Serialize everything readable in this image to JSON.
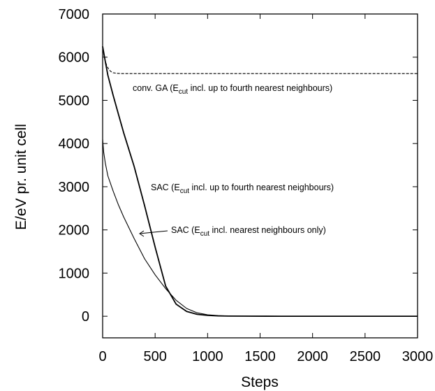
{
  "chart_data": {
    "type": "line",
    "title": "",
    "xlabel": "Steps",
    "ylabel": "E/eV pr. unit cell",
    "xlim": [
      0,
      3000
    ],
    "ylim": [
      -500,
      7000
    ],
    "xticks": [
      "0",
      "500",
      "1000",
      "1500",
      "2000",
      "2500",
      "3000"
    ],
    "yticks": [
      "0",
      "1000",
      "2000",
      "3000",
      "4000",
      "5000",
      "6000",
      "7000"
    ],
    "grid": false,
    "series": [
      {
        "style": "dashed",
        "x": [
          0,
          20,
          40,
          60,
          80,
          100,
          130,
          160,
          200,
          300,
          500,
          1000,
          2000,
          3000
        ],
        "y": [
          6250,
          5950,
          5800,
          5710,
          5665,
          5640,
          5628,
          5622,
          5620,
          5620,
          5620,
          5620,
          5620,
          5620
        ]
      },
      {
        "style": "solid",
        "x": [
          0,
          25,
          50,
          100,
          150,
          200,
          300,
          400,
          500,
          600,
          700,
          800,
          900,
          1000,
          1100,
          1200,
          1400,
          1700,
          2000,
          3000
        ],
        "y": [
          6250,
          5900,
          5580,
          5120,
          4680,
          4250,
          3470,
          2560,
          1600,
          700,
          280,
          110,
          45,
          20,
          8,
          4,
          2,
          0,
          0,
          0
        ]
      },
      {
        "style": "solid",
        "x": [
          0,
          10,
          25,
          50,
          100,
          150,
          200,
          300,
          400,
          500,
          600,
          700,
          800,
          900,
          1000,
          1100,
          1200,
          1500,
          2000,
          3000
        ],
        "y": [
          4100,
          3800,
          3550,
          3250,
          2900,
          2580,
          2300,
          1800,
          1330,
          960,
          640,
          370,
          180,
          80,
          35,
          15,
          6,
          0,
          0,
          0
        ]
      }
    ],
    "annotations": [
      {
        "text_main": "conv. GA (E",
        "text_sub": "cut",
        "text_rest": " incl. up to fourth nearest neighbours)"
      },
      {
        "text_main": "SAC (E",
        "text_sub": "cut",
        "text_rest": " incl. up to fourth nearest neighbours)"
      },
      {
        "text_main": "SAC (E",
        "text_sub": "cut",
        "text_rest": " incl. nearest neighbours only)"
      }
    ]
  }
}
